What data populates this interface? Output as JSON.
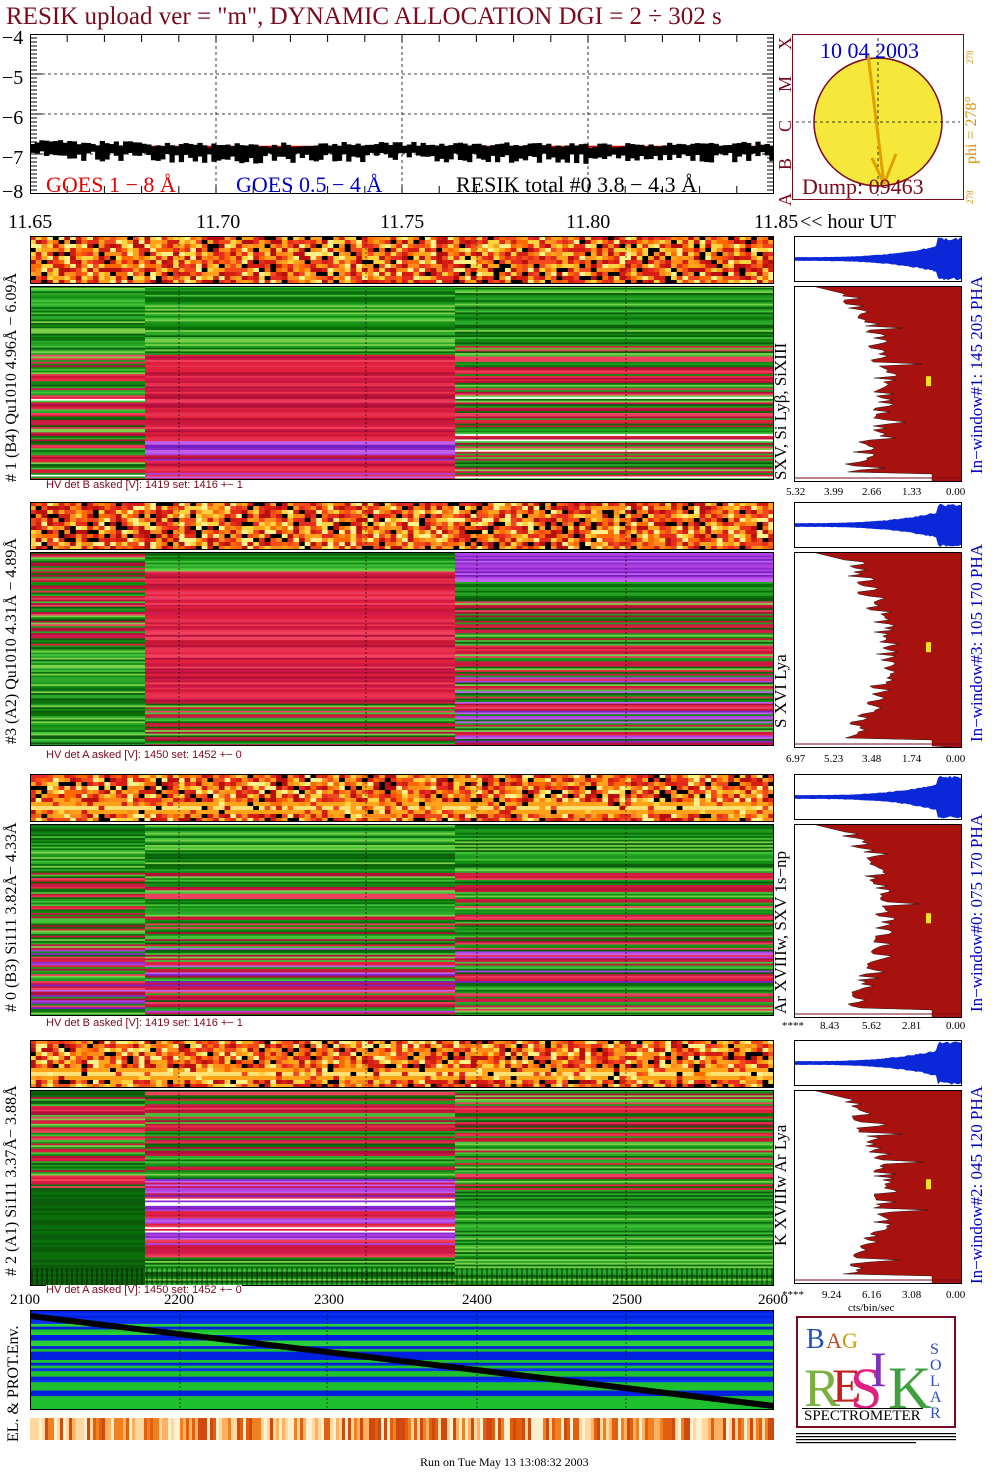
{
  "header": {
    "title": "RESIK upload ver = \"m\", DYNAMIC ALLOCATION  DGI =   2 ÷ 302 s",
    "color": "#7a0a1e"
  },
  "goes_panel": {
    "yticks": [
      "−4",
      "−5",
      "−6",
      "−7",
      "−8"
    ],
    "legend_goes18": "GOES 1 − 8 Å",
    "legend_goes054": "GOES 0.5 − 4 Å",
    "legend_resik": "RESIK total #0  3.8 − 4.3 Å",
    "goes18_color": "#e00000",
    "goes054_color": "#0000cc"
  },
  "time_axis": {
    "ticks": [
      "11.65",
      "11.70",
      "11.75",
      "11.80",
      "11.85"
    ],
    "unit": "<< hour UT"
  },
  "sun_panel": {
    "date": "10 04 2003",
    "dump": "Dump: 09463",
    "phi": "phi = 278°",
    "phi_small": "278",
    "phi_small_bottom": "278",
    "classes": [
      "X",
      "M",
      "C",
      "B",
      "A"
    ],
    "sun_color": "#f5e83a"
  },
  "detectors": [
    {
      "left_label": "# 1 (B4) Qu1010 4.96Å − 6.09Å",
      "line_label": "SXV, Si Lyβ, SiXIII",
      "window_label": "In−window#1:  145 205 PHA",
      "hv_label": "HV det B asked [V]:  1419 set:  1416 +−     1",
      "pha_ticks": [
        "5.32",
        "3.99",
        "2.66",
        "1.33",
        "0.00"
      ]
    },
    {
      "left_label": "#3 (A2) Qu1010  4.31Å − 4.89Å",
      "line_label": "S XVI Lya",
      "window_label": "In−window#3:  105 170 PHA",
      "hv_label": "HV det A asked [V]:  1450 set:  1452 +−     0",
      "pha_ticks": [
        "6.97",
        "5.23",
        "3.48",
        "1.74",
        "0.00"
      ]
    },
    {
      "left_label": "# 0 (B3) Si111  3.82Å− 4.33Å",
      "line_label": "Ar XVIIIw, SXV 1s−np",
      "window_label": "In−window#0:  075 170 PHA",
      "hv_label": "HV det B asked [V]:  1419 set:  1416 +−     1",
      "pha_ticks": [
        "****",
        "8.43",
        "5.62",
        "2.81",
        "0.00"
      ]
    },
    {
      "left_label": "# 2 (A1) Si111  3.37Å− 3.88Å",
      "line_label": "K XVIIIw  Ar Lya",
      "window_label": "In−window#2:  045 120 PHA",
      "hv_label": "HV det A asked [V]:  1450 set:  1452 +−     0",
      "pha_ticks": [
        "****",
        "9.24",
        "6.16",
        "3.08",
        "0.00"
      ]
    }
  ],
  "pha_unit": "cts/bin/sec",
  "bottom_panel": {
    "xticks": [
      "2100",
      "2200",
      "2300",
      "2400",
      "2500",
      "2600"
    ],
    "ylabel": "EL. & PROT.Env."
  },
  "logo": {
    "letters": [
      "B",
      "R",
      "A",
      "G",
      "E",
      "S",
      "I",
      "K",
      "S",
      "O",
      "L",
      "A",
      "R"
    ],
    "spectrometer": "SPECTROMETER"
  },
  "footer": {
    "run_label": "Run on Tue May 13 13:08:32 2003"
  },
  "chart_data": [
    {
      "type": "line",
      "title": "RESIK upload ver = \"m\", DYNAMIC ALLOCATION  DGI =   2 ÷ 302 s",
      "xlabel": "hour UT",
      "xlim": [
        11.65,
        11.85
      ],
      "ylim": [
        -8,
        -4
      ],
      "grid": true,
      "series": [
        {
          "name": "GOES 1 − 8 Å",
          "x": [
            11.65,
            11.85
          ],
          "values": [
            -6.82,
            -6.82
          ]
        },
        {
          "name": "GOES 0.5 − 4 Å",
          "x": [
            11.65,
            11.85
          ],
          "values": [
            -6.9,
            -6.9
          ]
        },
        {
          "name": "RESIK total #0  3.8 − 4.3 Å",
          "x": [
            11.65,
            11.7,
            11.75,
            11.8,
            11.85
          ],
          "values": [
            -6.75,
            -6.85,
            -6.8,
            -6.85,
            -6.8
          ]
        }
      ]
    },
    {
      "type": "heatmap",
      "title": "EL. & PROT.Env.",
      "x": [
        2100,
        2200,
        2300,
        2400,
        2500,
        2600
      ],
      "xlim": [
        2100,
        2600
      ]
    }
  ]
}
